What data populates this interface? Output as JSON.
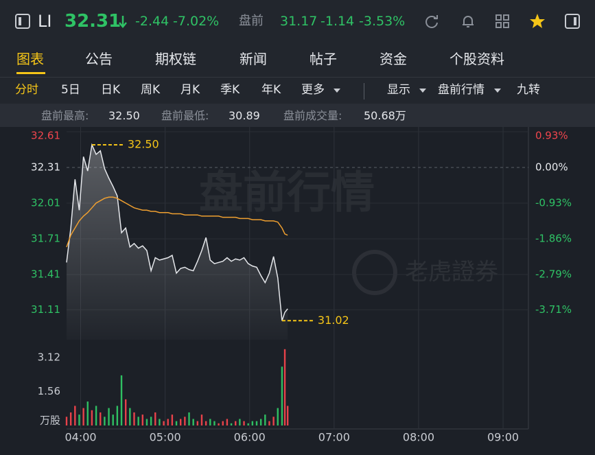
{
  "header": {
    "symbol": "LI",
    "price": "32.31",
    "change": "-2.44",
    "change_pct": "-7.02%",
    "pre_label": "盘前",
    "pre_price": "31.17",
    "pre_change": "-1.14",
    "pre_change_pct": "-3.53%"
  },
  "tabs": [
    "图表",
    "公告",
    "期权链",
    "新闻",
    "帖子",
    "资金",
    "个股资料"
  ],
  "subtabs": [
    "分时",
    "5日",
    "日K",
    "周K",
    "月K",
    "季K",
    "年K",
    "更多"
  ],
  "options": [
    "显示",
    "盘前行情",
    "九转"
  ],
  "stats": [
    {
      "label": "盘前最高:",
      "value": "32.50"
    },
    {
      "label": "盘前最低:",
      "value": "30.89"
    },
    {
      "label": "盘前成交量:",
      "value": "50.68万"
    }
  ],
  "watermark": {
    "text": "盘前行情",
    "brand": "老虎證券"
  },
  "chart_data": {
    "type": "line",
    "x": [
      230,
      233,
      236,
      239,
      242,
      245,
      248,
      251,
      254,
      257,
      260,
      263,
      266,
      269,
      272,
      275,
      278,
      281,
      284,
      287,
      290,
      293,
      296,
      299,
      302,
      305,
      308,
      311,
      314,
      317,
      320,
      323,
      326,
      329,
      332,
      335,
      338,
      341,
      344,
      347,
      350,
      353,
      356,
      359,
      362,
      365,
      368,
      371,
      374,
      377,
      380,
      383,
      385,
      387
    ],
    "series": [
      {
        "color": "#e6e8ec",
        "values": [
          31.51,
          31.8,
          32.21,
          31.95,
          32.4,
          32.28,
          32.5,
          32.42,
          32.45,
          32.3,
          32.22,
          32.15,
          32.07,
          31.76,
          31.8,
          31.64,
          31.67,
          31.63,
          31.65,
          31.61,
          31.44,
          31.55,
          31.53,
          31.54,
          31.55,
          31.57,
          31.42,
          31.46,
          31.47,
          31.45,
          31.44,
          31.52,
          31.61,
          31.72,
          31.53,
          31.5,
          31.51,
          31.52,
          31.55,
          31.52,
          31.54,
          31.53,
          31.55,
          31.5,
          31.48,
          31.47,
          31.4,
          31.34,
          31.42,
          31.56,
          31.38,
          31.02,
          31.09,
          31.12
        ]
      },
      {
        "color": "#f0a030",
        "values": [
          31.64,
          31.74,
          31.8,
          31.86,
          31.9,
          31.93,
          31.97,
          32.01,
          32.03,
          32.05,
          32.06,
          32.06,
          32.05,
          32.03,
          32.01,
          31.99,
          31.97,
          31.96,
          31.95,
          31.95,
          31.94,
          31.94,
          31.93,
          31.93,
          31.93,
          31.92,
          31.92,
          31.92,
          31.91,
          31.91,
          31.91,
          31.91,
          31.9,
          31.9,
          31.9,
          31.9,
          31.9,
          31.89,
          31.89,
          31.89,
          31.89,
          31.88,
          31.88,
          31.88,
          31.87,
          31.87,
          31.87,
          31.86,
          31.86,
          31.86,
          31.85,
          31.8,
          31.75,
          31.74
        ]
      }
    ],
    "annotations": [
      {
        "value": 32.5,
        "label": "32.50"
      },
      {
        "value": 31.02,
        "label": "31.02"
      }
    ],
    "annotation_color": "#f5c518",
    "volume": {
      "up_color": "#e8424a",
      "down_color": "#2fbf62",
      "values": [
        0.4,
        0.6,
        0.9,
        0.5,
        0.8,
        1.1,
        0.7,
        0.9,
        0.6,
        0.4,
        0.8,
        0.5,
        0.9,
        2.3,
        1.2,
        0.8,
        0.6,
        0.4,
        0.5,
        0.3,
        0.4,
        0.6,
        0.3,
        0.2,
        0.3,
        0.5,
        0.2,
        0.3,
        0.4,
        0.6,
        0.3,
        0.2,
        0.5,
        0.2,
        0.3,
        0.2,
        0.1,
        0.2,
        0.3,
        0.1,
        0.2,
        0.3,
        0.2,
        0.1,
        0.2,
        0.2,
        0.3,
        0.5,
        0.2,
        0.4,
        0.8,
        2.7,
        3.5,
        0.9
      ]
    },
    "xlim": [
      230,
      558
    ],
    "xticks": [
      {
        "value": 240,
        "label": "04:00"
      },
      {
        "value": 300,
        "label": "05:00"
      },
      {
        "value": 360,
        "label": "06:00"
      },
      {
        "value": 420,
        "label": "07:00"
      },
      {
        "value": 480,
        "label": "08:00"
      },
      {
        "value": 540,
        "label": "09:00"
      }
    ],
    "ylim": [
      30.86,
      32.61
    ],
    "yticks": [
      32.61,
      32.31,
      32.01,
      31.71,
      31.41,
      31.11
    ],
    "y2lim": [
      -4.49,
      0.93
    ],
    "y2ticks": [
      {
        "value": 0.93,
        "label": "0.93%"
      },
      {
        "value": 0,
        "label": "0.00%"
      },
      {
        "value": -0.93,
        "label": "-0.93%"
      },
      {
        "value": -1.86,
        "label": "-1.86%"
      },
      {
        "value": -2.79,
        "label": "-2.79%"
      },
      {
        "value": -3.71,
        "label": "-3.71%"
      }
    ],
    "vlim": [
      0,
      3.62
    ],
    "vticks": [
      {
        "value": 0,
        "label": "万股"
      },
      1.56,
      3.12
    ],
    "grid": true
  }
}
